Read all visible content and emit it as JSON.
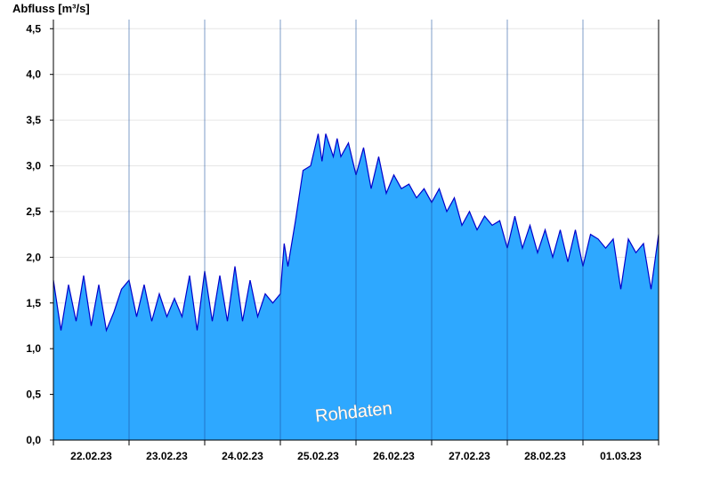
{
  "chart_data": {
    "type": "area",
    "ylabel": "Abfluss [m³/s]",
    "ylim": [
      0,
      4.6
    ],
    "yticks": [
      "0,0",
      "0,5",
      "1,0",
      "1,5",
      "2,0",
      "2,5",
      "3,0",
      "3,5",
      "4,0",
      "4,5"
    ],
    "yticks_values": [
      0,
      0.5,
      1.0,
      1.5,
      2.0,
      2.5,
      3.0,
      3.5,
      4.0,
      4.5
    ],
    "xlim": [
      0,
      8
    ],
    "xticks": [
      "22.02.23",
      "23.02.23",
      "24.02.23",
      "25.02.23",
      "26.02.23",
      "27.02.23",
      "28.02.23",
      "01.03.23"
    ],
    "grid": true,
    "annotation": "Rohdaten",
    "colors": {
      "fill": "#2ea8ff",
      "line": "#0000cc",
      "grid": "#e6e6e6",
      "day_line": "#1a4fa0"
    },
    "series": [
      {
        "name": "",
        "x": [
          0.0,
          0.1,
          0.2,
          0.3,
          0.4,
          0.5,
          0.6,
          0.7,
          0.8,
          0.9,
          1.0,
          1.1,
          1.2,
          1.3,
          1.4,
          1.5,
          1.6,
          1.7,
          1.8,
          1.9,
          2.0,
          2.1,
          2.2,
          2.3,
          2.4,
          2.5,
          2.6,
          2.7,
          2.8,
          2.9,
          3.0,
          3.05,
          3.1,
          3.2,
          3.3,
          3.4,
          3.5,
          3.55,
          3.6,
          3.7,
          3.75,
          3.8,
          3.9,
          4.0,
          4.1,
          4.2,
          4.3,
          4.4,
          4.5,
          4.6,
          4.7,
          4.8,
          4.9,
          5.0,
          5.1,
          5.2,
          5.3,
          5.4,
          5.5,
          5.6,
          5.7,
          5.8,
          5.9,
          6.0,
          6.1,
          6.2,
          6.3,
          6.4,
          6.5,
          6.6,
          6.7,
          6.8,
          6.9,
          7.0,
          7.1,
          7.2,
          7.3,
          7.4,
          7.5,
          7.6,
          7.7,
          7.8,
          7.9,
          8.0
        ],
        "y": [
          1.75,
          1.2,
          1.7,
          1.3,
          1.8,
          1.25,
          1.7,
          1.2,
          1.4,
          1.65,
          1.75,
          1.35,
          1.7,
          1.3,
          1.6,
          1.35,
          1.55,
          1.35,
          1.8,
          1.2,
          1.85,
          1.3,
          1.8,
          1.3,
          1.9,
          1.3,
          1.75,
          1.35,
          1.6,
          1.5,
          1.6,
          2.15,
          1.9,
          2.4,
          2.95,
          3.0,
          3.35,
          3.05,
          3.35,
          3.1,
          3.3,
          3.1,
          3.25,
          2.9,
          3.2,
          2.75,
          3.1,
          2.7,
          2.9,
          2.75,
          2.8,
          2.65,
          2.75,
          2.6,
          2.75,
          2.5,
          2.65,
          2.35,
          2.5,
          2.3,
          2.45,
          2.35,
          2.4,
          2.1,
          2.45,
          2.1,
          2.35,
          2.05,
          2.3,
          2.0,
          2.3,
          1.95,
          2.3,
          1.9,
          2.25,
          2.2,
          2.1,
          2.2,
          1.65,
          2.2,
          2.05,
          2.15,
          1.65,
          2.25
        ]
      }
    ]
  }
}
